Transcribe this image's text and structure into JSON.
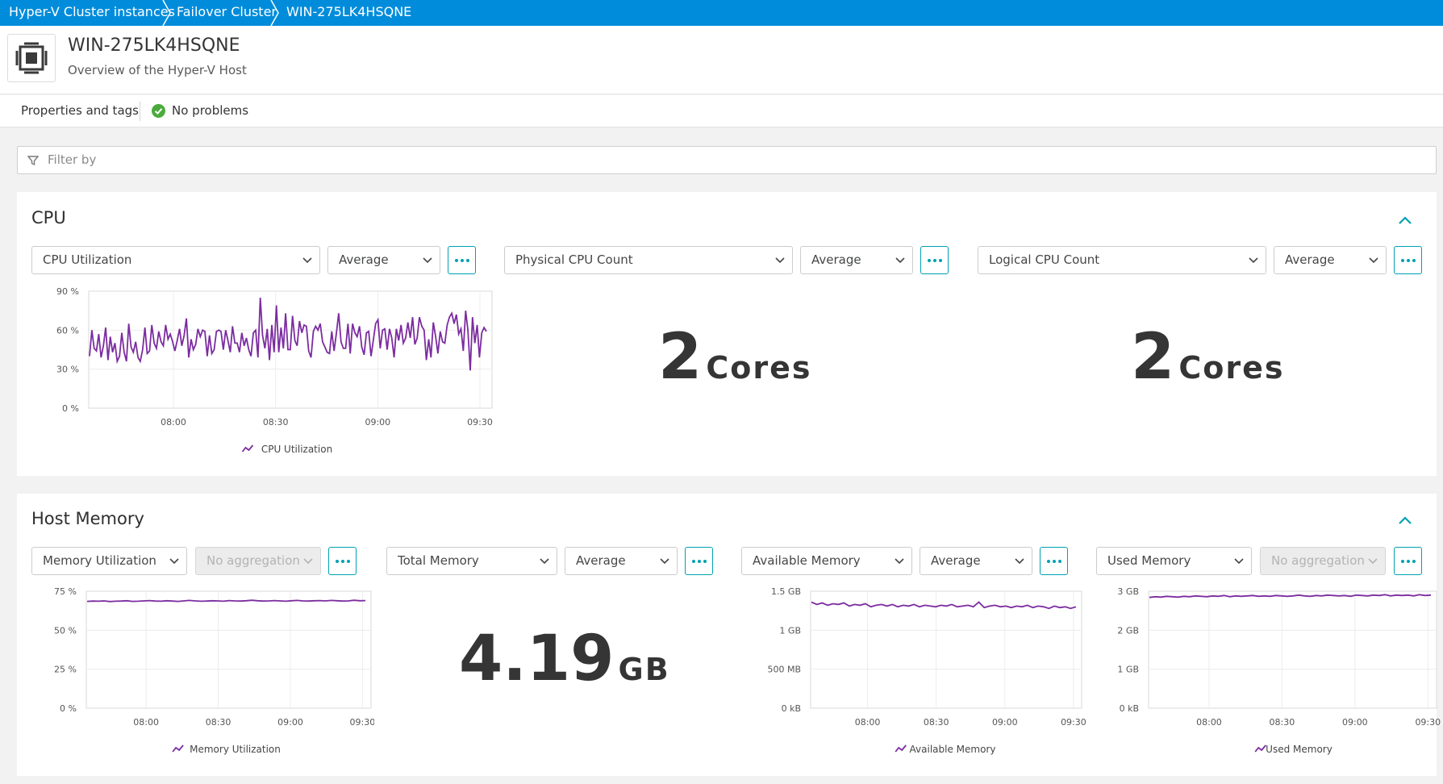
{
  "breadcrumb": [
    "Hyper-V Cluster instances",
    "Failover Cluster",
    "WIN-275LK4HSQNE"
  ],
  "header": {
    "title": "WIN-275LK4HSQNE",
    "subtitle": "Overview of the Hyper-V Host",
    "icon": "host-icon"
  },
  "tabs": {
    "properties_label": "Properties and tags",
    "status_label": "No problems"
  },
  "filter": {
    "placeholder": "Filter by"
  },
  "colors": {
    "breadcrumb": "#008cdb",
    "accent": "#00a1b2",
    "series": "#7c2ca0",
    "ok": "#4aab3c"
  },
  "cpu_section": {
    "title": "CPU",
    "tiles": [
      {
        "metric": "CPU Utilization",
        "aggregation": "Average"
      },
      {
        "metric": "Physical CPU Count",
        "aggregation": "Average",
        "value": "2",
        "unit": "Cores"
      },
      {
        "metric": "Logical CPU Count",
        "aggregation": "Average",
        "value": "2",
        "unit": "Cores"
      }
    ]
  },
  "memory_section": {
    "title": "Host Memory",
    "tiles": [
      {
        "metric": "Memory Utilization",
        "aggregation": "No aggregation"
      },
      {
        "metric": "Total Memory",
        "aggregation": "Average",
        "value": "4.19",
        "unit": "GB"
      },
      {
        "metric": "Available Memory",
        "aggregation": "Average"
      },
      {
        "metric": "Used Memory",
        "aggregation": "No aggregation"
      }
    ]
  },
  "chart_data": [
    {
      "id": "cpu",
      "type": "line",
      "y_ticks": [
        "90 %",
        "60 %",
        "30 %",
        "0 %"
      ],
      "x_ticks": [
        "08:00",
        "08:30",
        "09:00",
        "09:30"
      ],
      "ylim": [
        0,
        90
      ],
      "series": [
        {
          "name": "CPU Utilization",
          "values": [
            40,
            60,
            46,
            44,
            57,
            39,
            48,
            62,
            37,
            55,
            43,
            50,
            36,
            40,
            58,
            43,
            36,
            65,
            47,
            43,
            51,
            39,
            36,
            45,
            62,
            42,
            44,
            64,
            50,
            46,
            59,
            51,
            48,
            64,
            53,
            57,
            51,
            44,
            52,
            61,
            48,
            56,
            69,
            39,
            53,
            45,
            49,
            61,
            55,
            60,
            59,
            40,
            56,
            42,
            45,
            59,
            60,
            59,
            45,
            60,
            52,
            43,
            63,
            50,
            50,
            43,
            58,
            48,
            54,
            45,
            40,
            58,
            60,
            39,
            85,
            56,
            46,
            61,
            37,
            64,
            43,
            79,
            43,
            62,
            46,
            73,
            45,
            45,
            71,
            52,
            48,
            67,
            58,
            64,
            63,
            44,
            39,
            59,
            63,
            60,
            65,
            51,
            47,
            43,
            42,
            59,
            44,
            58,
            73,
            51,
            46,
            46,
            65,
            42,
            65,
            58,
            55,
            63,
            47,
            41,
            58,
            59,
            40,
            52,
            65,
            68,
            46,
            60,
            61,
            45,
            61,
            54,
            39,
            61,
            52,
            64,
            50,
            54,
            66,
            54,
            70,
            49,
            54,
            70,
            63,
            60,
            37,
            53,
            39,
            66,
            55,
            42,
            59,
            51,
            50,
            64,
            70,
            73,
            65,
            72,
            57,
            61,
            44,
            75,
            60,
            29,
            70,
            50,
            64,
            39,
            58,
            62,
            59
          ]
        }
      ]
    },
    {
      "id": "mem_util",
      "type": "line",
      "y_ticks": [
        "75 %",
        "50 %",
        "25 %",
        "0 %"
      ],
      "x_ticks": [
        "08:00",
        "08:30",
        "09:00",
        "09:30"
      ],
      "ylim": [
        0,
        75
      ],
      "series": [
        {
          "name": "Memory Utilization",
          "values": [
            68.5,
            68.7,
            68.6,
            68.8,
            68.4,
            68.6,
            68.7,
            68.9,
            68.5,
            68.6,
            68.8,
            69.0,
            68.7,
            68.6,
            68.9,
            68.7,
            68.5,
            68.8,
            69.1,
            68.8,
            68.6,
            68.7,
            68.9,
            68.8,
            68.6,
            69.0,
            68.8,
            68.7,
            68.9,
            69.2,
            68.9,
            68.7,
            68.8,
            69.0,
            68.8,
            68.6,
            68.9,
            69.1,
            68.8,
            68.7,
            68.9,
            69.0,
            68.8,
            69.1,
            68.9,
            68.7,
            68.8,
            69.2,
            68.9,
            69.0
          ]
        }
      ]
    },
    {
      "id": "mem_avail",
      "type": "line",
      "y_ticks": [
        "1.5 GB",
        "1 GB",
        "500 MB",
        "0 kB"
      ],
      "x_ticks": [
        "08:00",
        "08:30",
        "09:00",
        "09:30"
      ],
      "ylim": [
        0,
        1.5
      ],
      "series": [
        {
          "name": "Available Memory",
          "values": [
            1.36,
            1.33,
            1.35,
            1.32,
            1.34,
            1.33,
            1.35,
            1.31,
            1.33,
            1.32,
            1.34,
            1.3,
            1.32,
            1.33,
            1.31,
            1.33,
            1.3,
            1.32,
            1.31,
            1.33,
            1.3,
            1.32,
            1.31,
            1.3,
            1.32,
            1.31,
            1.33,
            1.3,
            1.31,
            1.32,
            1.3,
            1.36,
            1.29,
            1.31,
            1.32,
            1.3,
            1.31,
            1.29,
            1.31,
            1.3,
            1.32,
            1.29,
            1.31,
            1.3,
            1.28,
            1.31,
            1.29,
            1.3,
            1.28,
            1.3
          ]
        }
      ]
    },
    {
      "id": "mem_used",
      "type": "line",
      "y_ticks": [
        "3 GB",
        "2 GB",
        "1 GB",
        "0 kB"
      ],
      "x_ticks": [
        "08:00",
        "08:30",
        "09:00",
        "09:30"
      ],
      "ylim": [
        0,
        3
      ],
      "series": [
        {
          "name": "Used Memory",
          "values": [
            2.84,
            2.86,
            2.85,
            2.87,
            2.86,
            2.85,
            2.87,
            2.86,
            2.88,
            2.87,
            2.86,
            2.88,
            2.87,
            2.89,
            2.86,
            2.88,
            2.87,
            2.88,
            2.89,
            2.87,
            2.88,
            2.87,
            2.89,
            2.88,
            2.87,
            2.88,
            2.9,
            2.88,
            2.87,
            2.89,
            2.88,
            2.9,
            2.89,
            2.88,
            2.89,
            2.87,
            2.9,
            2.89,
            2.88,
            2.9,
            2.89,
            2.91,
            2.88,
            2.9,
            2.89,
            2.9,
            2.88,
            2.91,
            2.89,
            2.9
          ]
        }
      ]
    }
  ]
}
